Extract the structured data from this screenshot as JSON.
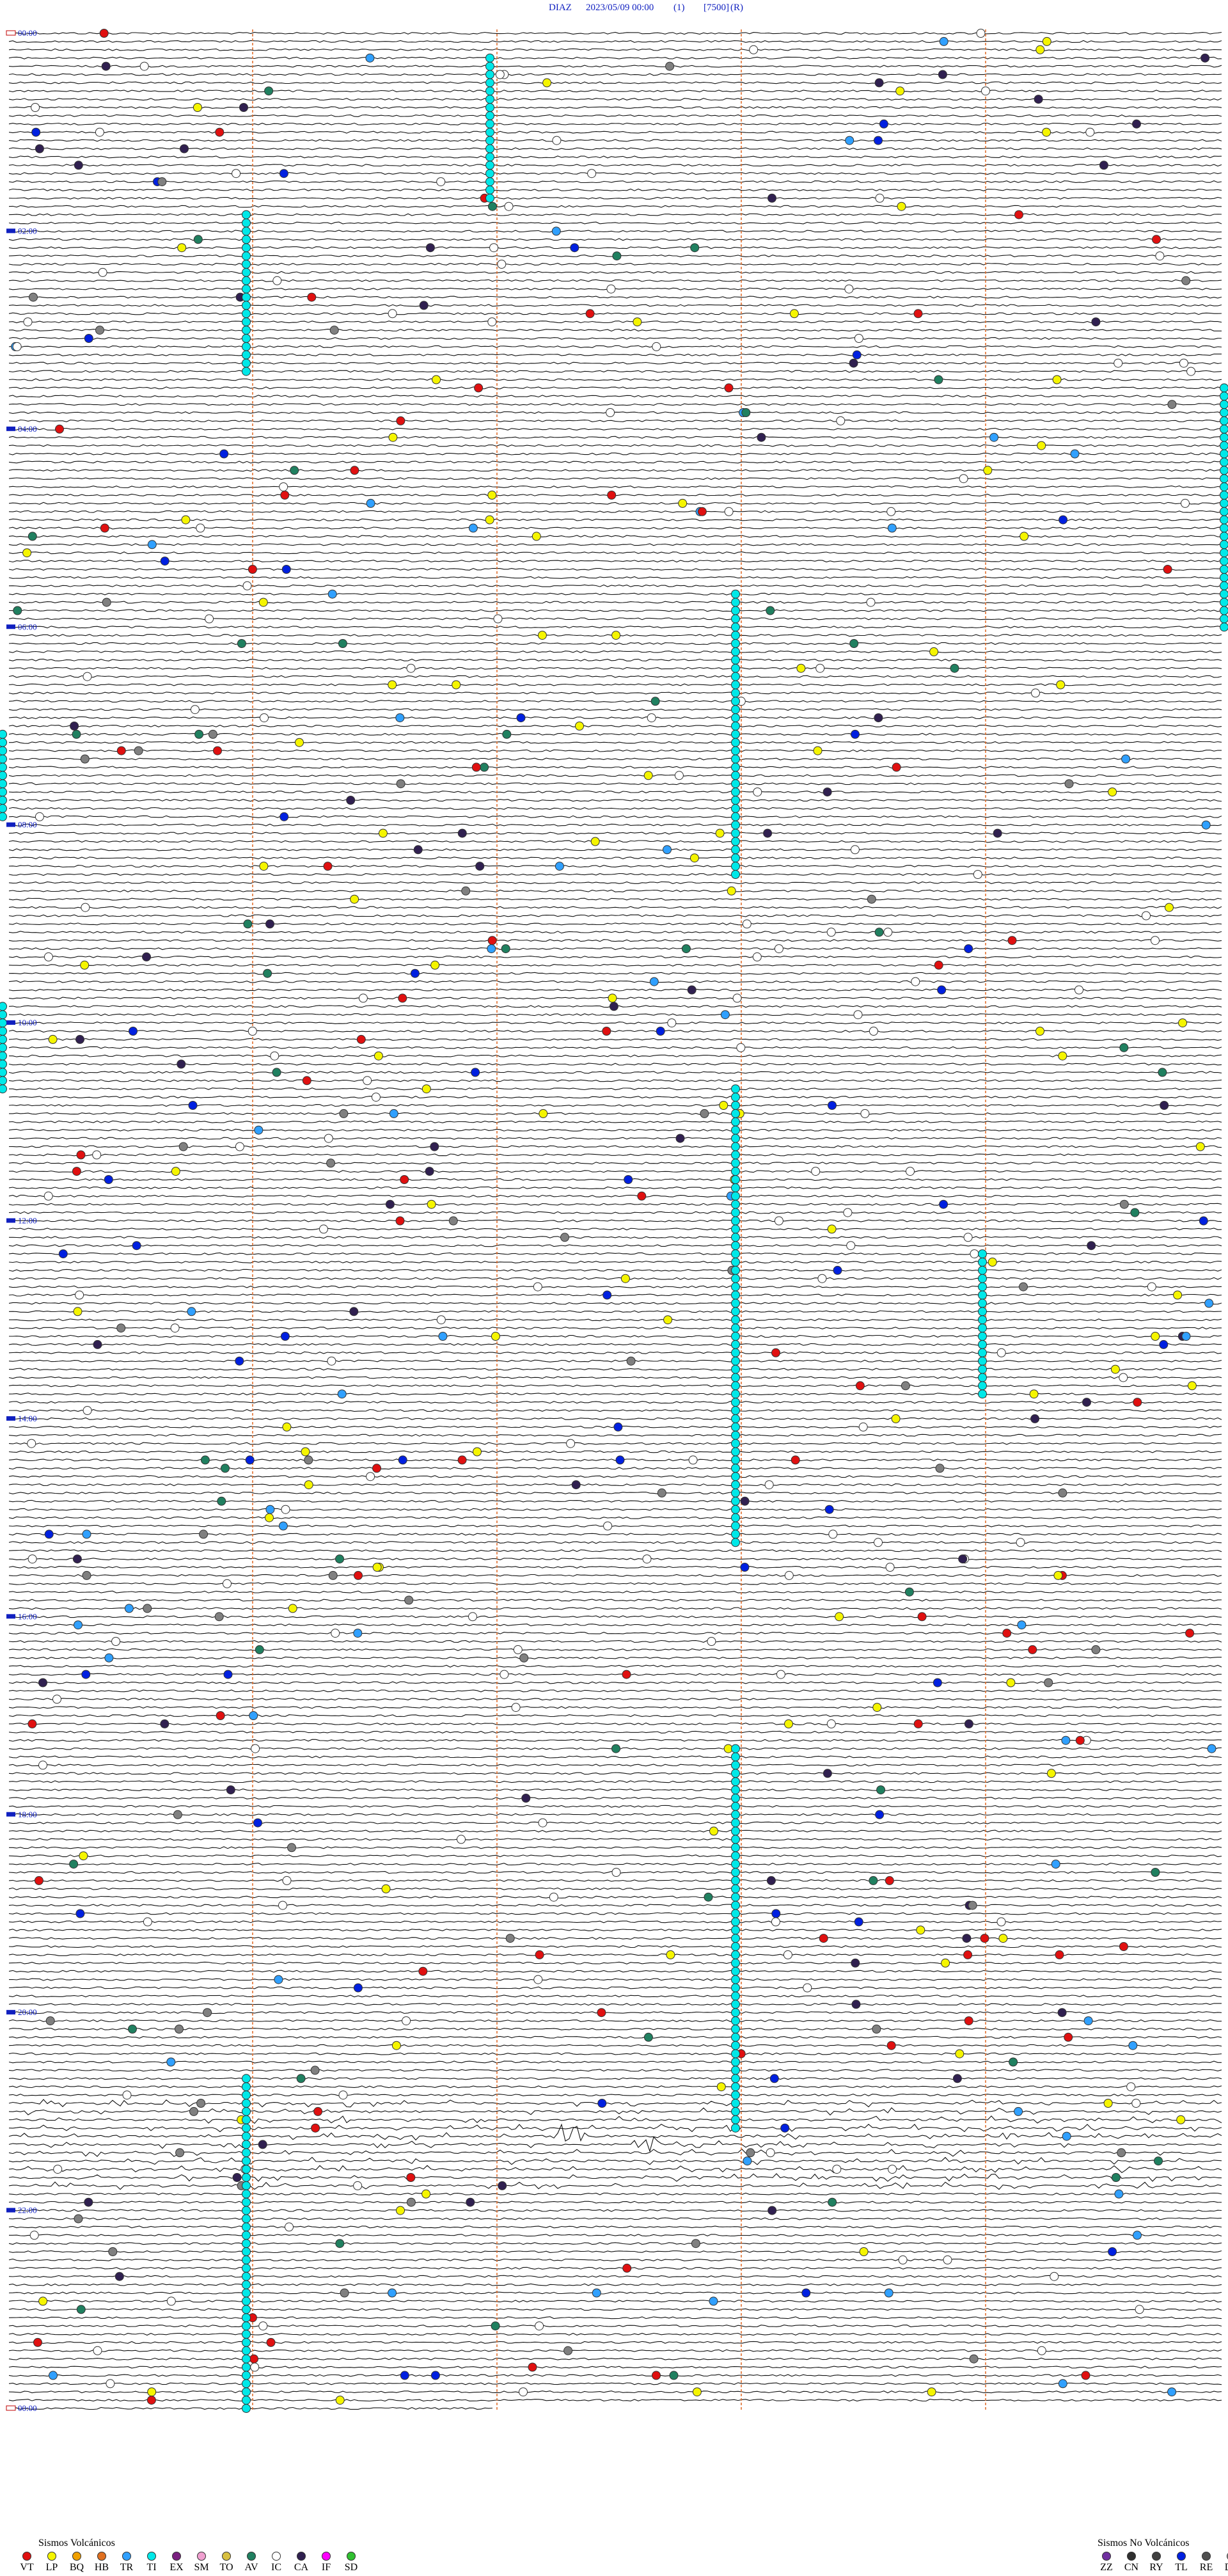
{
  "header": {
    "station": "DIAZ",
    "datetime": "2023/05/09 00:00",
    "channel": "(1)",
    "scale": "[7500]",
    "mode": "(R)"
  },
  "hour_labels": [
    "00:00",
    "02:00",
    "04:00",
    "06:00",
    "08:00",
    "10:00",
    "12:00",
    "14:00",
    "16:00",
    "18:00",
    "20:00",
    "22:00",
    "00:00"
  ],
  "legend": {
    "volcanic": {
      "title": "Sismos Volcánicos",
      "items": [
        {
          "code": "VT",
          "color": "#e01010"
        },
        {
          "code": "LP",
          "color": "#f5f500"
        },
        {
          "code": "BQ",
          "color": "#f0a000"
        },
        {
          "code": "HB",
          "color": "#e07020"
        },
        {
          "code": "TR",
          "color": "#30a0ff"
        },
        {
          "code": "TI",
          "color": "#00e8e8"
        },
        {
          "code": "EX",
          "color": "#7a2080"
        },
        {
          "code": "SM",
          "color": "#f0a0d0"
        },
        {
          "code": "TO",
          "color": "#d8c040"
        },
        {
          "code": "AV",
          "color": "#208060"
        },
        {
          "code": "IC",
          "color": "#ffffff"
        },
        {
          "code": "CA",
          "color": "#302050"
        },
        {
          "code": "IF",
          "color": "#ff00ff"
        },
        {
          "code": "SD",
          "color": "#30c030"
        }
      ]
    },
    "non_volcanic": {
      "title": "Sismos No Volcánicos",
      "items": [
        {
          "code": "ZZ",
          "color": "#7030a0"
        },
        {
          "code": "CN",
          "color": "#303030"
        },
        {
          "code": "RY",
          "color": "#404040"
        },
        {
          "code": "TL",
          "color": "#0020e0"
        },
        {
          "code": "RE",
          "color": "#505050"
        },
        {
          "code": "DS",
          "color": "#909090"
        }
      ]
    }
  }
}
